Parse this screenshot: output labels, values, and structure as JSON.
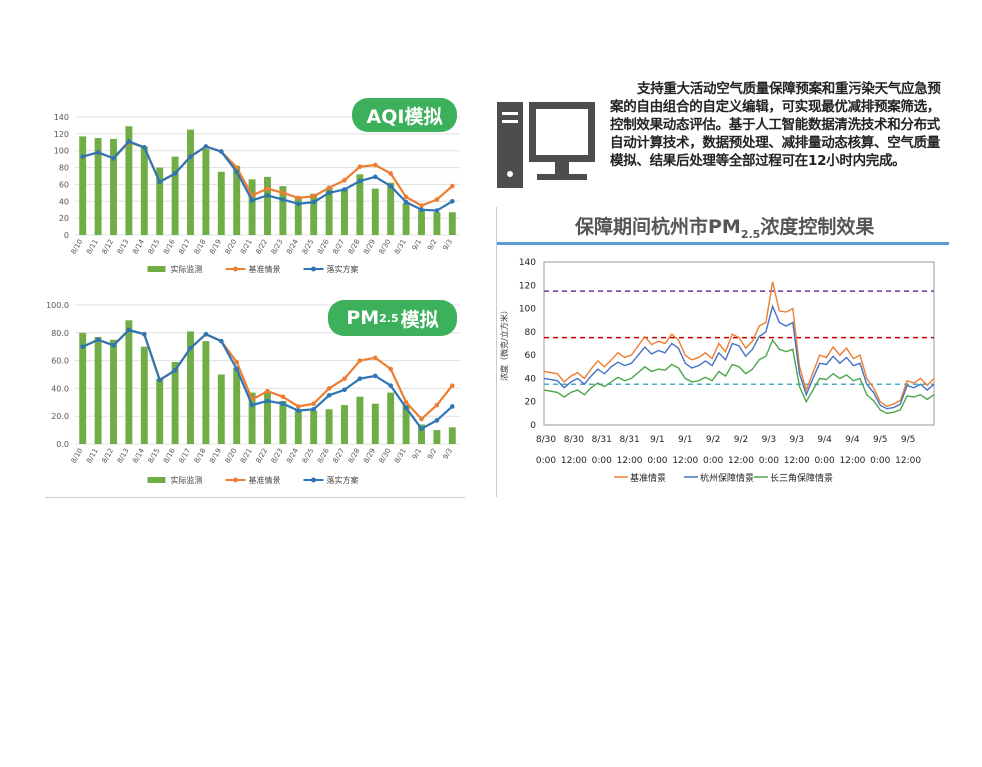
{
  "labels": {
    "aqi_pill": "AQI模拟",
    "pm_pill_main": "PM",
    "pm_pill_sub": "2.5",
    "pm_pill_tail": "模拟",
    "description": "支持重大活动空气质量保障预案和重污染天气应急预案的自由组合的自定义编辑，可实现最优减排预案筛选，控制效果动态评估。基于人工智能数据清洗技术和分布式自动计算技术，数据预处理、减排量动态核算、空气质量模拟、结果后处理等全部过程可在12小时内完成。",
    "right_title_pre": "保障期间杭州市PM",
    "right_title_sub": "2.5",
    "right_title_post": "浓度控制效果"
  },
  "chart_data": [
    {
      "type": "bar+line",
      "categories": [
        "8/10",
        "8/11",
        "8/12",
        "8/13",
        "8/14",
        "8/15",
        "8/16",
        "8/17",
        "8/18",
        "8/19",
        "8/20",
        "8/21",
        "8/22",
        "8/23",
        "8/24",
        "8/25",
        "8/26",
        "8/27",
        "8/28",
        "8/29",
        "8/30",
        "8/31",
        "9/1",
        "9/2",
        "9/3"
      ],
      "ylim": [
        0,
        140
      ],
      "yticks": [
        0,
        20,
        40,
        60,
        80,
        100,
        120,
        140
      ],
      "ytick_labels": [
        "0",
        "20",
        "40",
        "60",
        "80",
        "100",
        "120",
        "140"
      ],
      "series": [
        {
          "name": "实际监测",
          "kind": "bar",
          "color": "#70ad47",
          "values": [
            117,
            115,
            114,
            129,
            105,
            80,
            93,
            125,
            102,
            75,
            82,
            66,
            69,
            58,
            46,
            49,
            56,
            55,
            72,
            55,
            62,
            38,
            30,
            27,
            27
          ]
        },
        {
          "name": "基准情景",
          "kind": "line",
          "color": "#ed7d31",
          "values": [
            93,
            98,
            91,
            110,
            104,
            63,
            73,
            93,
            105,
            99,
            80,
            47,
            55,
            50,
            44,
            46,
            56,
            65,
            81,
            83,
            73,
            45,
            35,
            42,
            58
          ]
        },
        {
          "name": "落实方案",
          "kind": "line",
          "color": "#2e75b6",
          "values": [
            93,
            98,
            91,
            111,
            104,
            63,
            73,
            93,
            105,
            99,
            75,
            41,
            47,
            42,
            37,
            39,
            50,
            54,
            64,
            69,
            58,
            39,
            30,
            29,
            40
          ]
        }
      ]
    },
    {
      "type": "bar+line",
      "categories": [
        "8/10",
        "8/11",
        "8/12",
        "8/13",
        "8/14",
        "8/15",
        "8/16",
        "8/17",
        "8/18",
        "8/19",
        "8/20",
        "8/21",
        "8/22",
        "8/23",
        "8/24",
        "8/25",
        "8/26",
        "8/27",
        "8/28",
        "8/29",
        "8/30",
        "8/31",
        "9/1",
        "9/2",
        "9/3"
      ],
      "ylim": [
        0,
        100
      ],
      "yticks": [
        0,
        20,
        40,
        60,
        80,
        100
      ],
      "ytick_labels": [
        "0.0",
        "20.0",
        "40.0",
        "60.0",
        "80.0",
        "100.0"
      ],
      "series": [
        {
          "name": "实际监测",
          "kind": "bar",
          "color": "#70ad47",
          "values": [
            80,
            77,
            75,
            89,
            70,
            47,
            59,
            81,
            74,
            50,
            55,
            37,
            38,
            31,
            25,
            24,
            25,
            28,
            34,
            29,
            37,
            28,
            14,
            10,
            12
          ]
        },
        {
          "name": "基准情景",
          "kind": "line",
          "color": "#ed7d31",
          "values": [
            70,
            75,
            71,
            82,
            79,
            46,
            53,
            69,
            79,
            74,
            59,
            32,
            38,
            34,
            27,
            29,
            40,
            47,
            60,
            62,
            54,
            30,
            18,
            28,
            42
          ]
        },
        {
          "name": "落实方案",
          "kind": "line",
          "color": "#2e75b6",
          "values": [
            70,
            75,
            71,
            82,
            79,
            46,
            53,
            69,
            79,
            74,
            54,
            28,
            31,
            29,
            24,
            25,
            35,
            39,
            47,
            49,
            42,
            26,
            11,
            17,
            27
          ]
        }
      ]
    },
    {
      "type": "line",
      "title": "保障期间杭州市PM2.5浓度控制效果",
      "ylabel": "浓度（微克/立方米）",
      "ylim": [
        0,
        140
      ],
      "yticks": [
        0,
        20,
        40,
        60,
        80,
        100,
        120,
        140
      ],
      "x_tick_dates": [
        "8/30",
        "8/30",
        "8/31",
        "8/31",
        "9/1",
        "9/1",
        "9/2",
        "9/2",
        "9/3",
        "9/3",
        "9/4",
        "9/4",
        "9/5",
        "9/5"
      ],
      "x_tick_times": [
        "0:00",
        "12:00",
        "0:00",
        "12:00",
        "0:00",
        "12:00",
        "0:00",
        "12:00",
        "0:00",
        "12:00",
        "0:00",
        "12:00",
        "0:00",
        "12:00"
      ],
      "thresholds": [
        {
          "value": 115,
          "color": "#7030a0"
        },
        {
          "value": 75,
          "color": "#c00000"
        },
        {
          "value": 35,
          "color": "#4bacc6"
        }
      ],
      "series": [
        {
          "name": "基准情景",
          "color": "#ed7d31",
          "values": [
            46,
            45,
            44,
            37,
            42,
            45,
            40,
            48,
            55,
            50,
            56,
            62,
            58,
            60,
            68,
            76,
            69,
            72,
            70,
            78,
            73,
            60,
            56,
            58,
            62,
            57,
            70,
            63,
            78,
            75,
            66,
            72,
            85,
            88,
            123,
            98,
            97,
            100,
            50,
            30,
            45,
            60,
            58,
            67,
            60,
            66,
            57,
            60,
            40,
            32,
            20,
            16,
            18,
            21,
            38,
            36,
            40,
            34,
            40
          ]
        },
        {
          "name": "杭州保障情景",
          "color": "#4472c4",
          "values": [
            40,
            39,
            38,
            32,
            37,
            40,
            35,
            42,
            48,
            44,
            50,
            54,
            51,
            53,
            60,
            67,
            61,
            64,
            62,
            70,
            66,
            53,
            49,
            51,
            55,
            51,
            62,
            56,
            70,
            68,
            59,
            65,
            76,
            80,
            102,
            88,
            85,
            88,
            44,
            26,
            40,
            53,
            52,
            59,
            53,
            58,
            51,
            53,
            35,
            28,
            17,
            14,
            15,
            18,
            34,
            32,
            35,
            30,
            35
          ]
        },
        {
          "name": "长三角保障情景",
          "color": "#4ca64c",
          "values": [
            30,
            29,
            28,
            24,
            28,
            30,
            26,
            32,
            36,
            33,
            37,
            41,
            38,
            40,
            45,
            50,
            46,
            48,
            47,
            52,
            49,
            40,
            37,
            38,
            41,
            38,
            46,
            42,
            52,
            50,
            44,
            48,
            56,
            59,
            73,
            65,
            63,
            65,
            33,
            20,
            30,
            40,
            39,
            44,
            40,
            43,
            38,
            40,
            26,
            21,
            13,
            10,
            11,
            13,
            25,
            24,
            26,
            22,
            26
          ]
        }
      ]
    }
  ]
}
